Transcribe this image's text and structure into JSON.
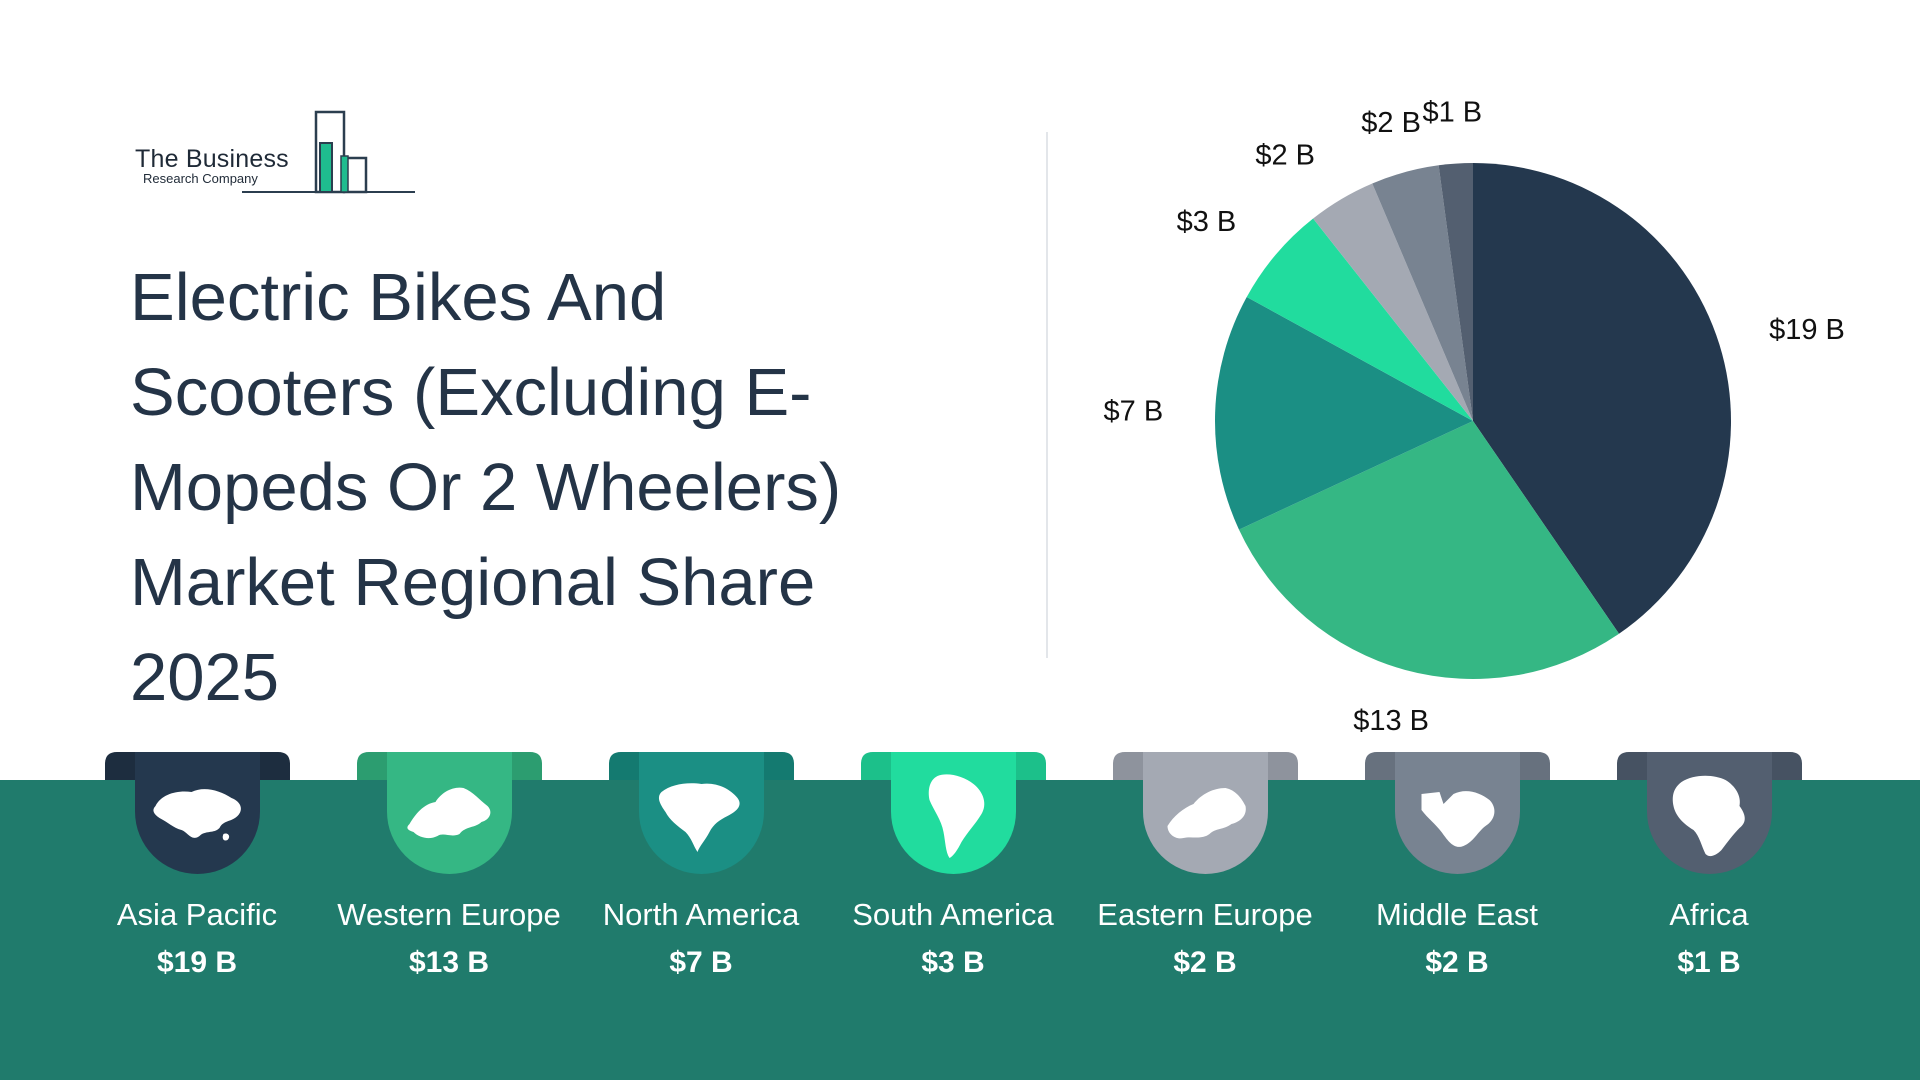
{
  "brand": {
    "name_line1": "The Business",
    "name_line2": "Research Company",
    "accent": "#1fbc8f"
  },
  "title_lines": [
    "Electric Bikes And",
    "Scooters (Excluding E-",
    "Mopeds Or 2 Wheelers)",
    "Market Regional Share",
    "2025"
  ],
  "chart_data": {
    "type": "pie",
    "title": "Electric Bikes And Scooters (Excluding E-Mopeds Or 2 Wheelers) Market Regional Share 2025",
    "unit": "$ B",
    "categories": [
      "Asia Pacific",
      "Western Europe",
      "North America",
      "South America",
      "Eastern Europe",
      "Middle East",
      "Africa"
    ],
    "values": [
      19,
      13,
      7,
      3,
      2,
      2,
      1
    ],
    "slice_labels": [
      "$19 B",
      "$13 B",
      "$7 B",
      "$3 B",
      "$2 B",
      "$2 B",
      "$1 B"
    ],
    "colors": [
      "#24384e",
      "#35b784",
      "#1b8f84",
      "#21dc9e",
      "#a4a9b3",
      "#788391",
      "#535f70"
    ],
    "legend": "bottom"
  },
  "regions": [
    {
      "name": "Asia Pacific",
      "value": "$19 B",
      "icon": "asia-map-icon",
      "color": "#24384e",
      "tab": "#1d2d3f"
    },
    {
      "name": "Western Europe",
      "value": "$13 B",
      "icon": "western-europe-map-icon",
      "color": "#35b784",
      "tab": "#2c9d70"
    },
    {
      "name": "North America",
      "value": "$7 B",
      "icon": "north-america-map-icon",
      "color": "#1b8f84",
      "tab": "#147a70"
    },
    {
      "name": "South America",
      "value": "$3 B",
      "icon": "south-america-map-icon",
      "color": "#21dc9e",
      "tab": "#1cc08a"
    },
    {
      "name": "Eastern Europe",
      "value": "$2 B",
      "icon": "eastern-europe-map-icon",
      "color": "#a4a9b3",
      "tab": "#8e939d"
    },
    {
      "name": "Middle East",
      "value": "$2 B",
      "icon": "middle-east-map-icon",
      "color": "#788391",
      "tab": "#67717e"
    },
    {
      "name": "Africa",
      "value": "$1 B",
      "icon": "africa-map-icon",
      "color": "#535f70",
      "tab": "#465262"
    }
  ],
  "band_color": "#207b6c"
}
